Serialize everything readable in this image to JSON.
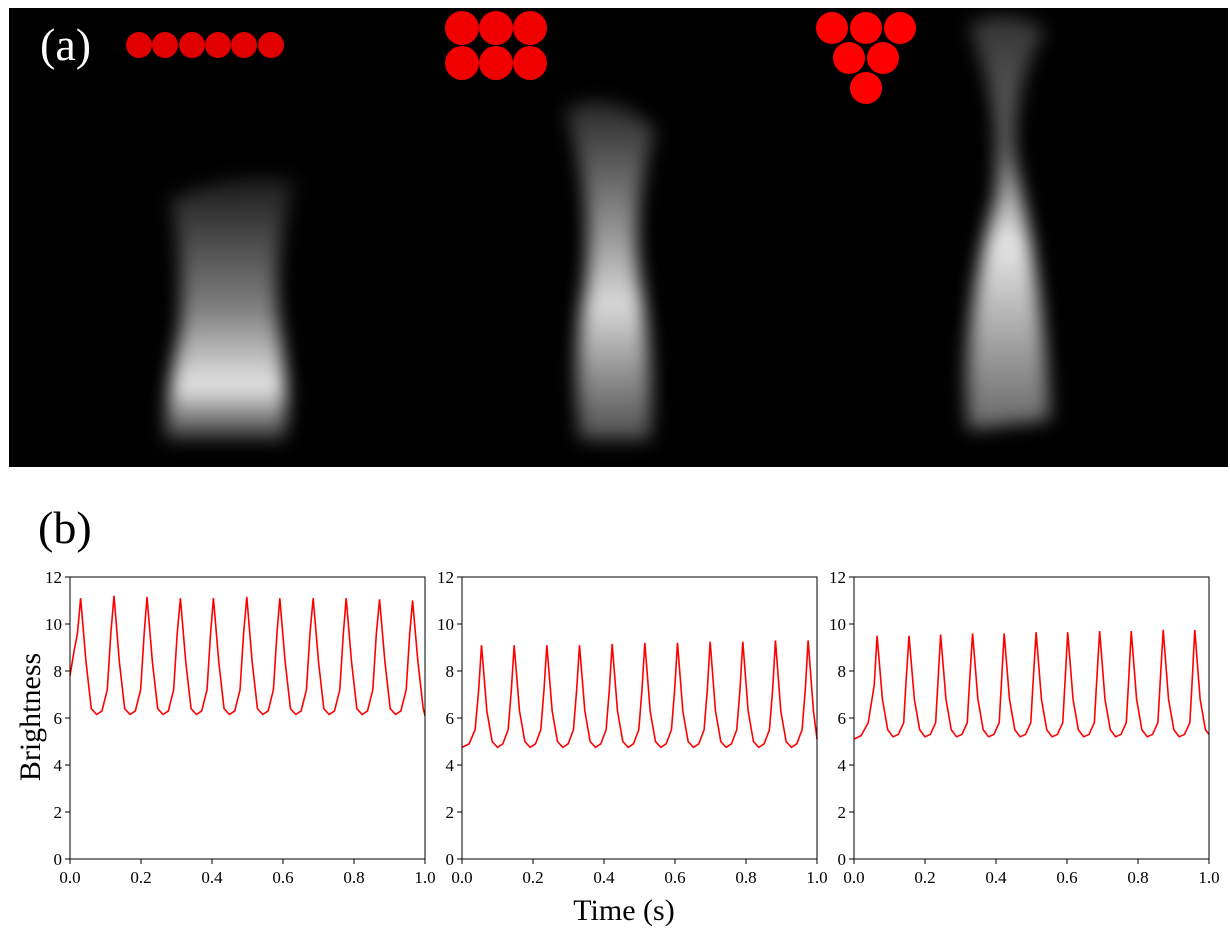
{
  "figure": {
    "panel_a_label": "(a)",
    "panel_b_label": "(b)",
    "ylabel": "Brightness",
    "xlabel": "Time (s)"
  },
  "chart_data": [
    {
      "type": "line",
      "color": "#ff0000",
      "xlim": [
        0,
        1
      ],
      "ylim": [
        0,
        12
      ],
      "xticks": [
        {
          "value": 0,
          "label": "0.0"
        },
        0.2,
        0.4,
        0.6,
        0.8,
        {
          "value": 1,
          "label": "1.0"
        }
      ],
      "yticks": [
        0,
        2,
        4,
        6,
        8,
        10,
        12
      ],
      "x": [
        0,
        0.012,
        0.021,
        0.03,
        0.045,
        0.06,
        0.075,
        0.09,
        0.105,
        0.115,
        0.124,
        0.139,
        0.154,
        0.169,
        0.184,
        0.199,
        0.209,
        0.217,
        0.232,
        0.247,
        0.262,
        0.277,
        0.292,
        0.302,
        0.311,
        0.326,
        0.341,
        0.356,
        0.371,
        0.386,
        0.396,
        0.404,
        0.419,
        0.434,
        0.449,
        0.464,
        0.479,
        0.489,
        0.498,
        0.513,
        0.528,
        0.543,
        0.558,
        0.573,
        0.583,
        0.591,
        0.606,
        0.621,
        0.636,
        0.651,
        0.666,
        0.676,
        0.685,
        0.7,
        0.715,
        0.73,
        0.745,
        0.76,
        0.77,
        0.778,
        0.793,
        0.808,
        0.823,
        0.838,
        0.853,
        0.863,
        0.872,
        0.887,
        0.902,
        0.917,
        0.932,
        0.947,
        0.957,
        0.965,
        0.98,
        0.995,
        1
      ],
      "values": [
        7.8,
        8.9,
        9.6,
        11.1,
        8.4,
        6.4,
        6.15,
        6.3,
        7.2,
        9.6,
        11.2,
        8.4,
        6.4,
        6.15,
        6.3,
        7.2,
        9.6,
        11.15,
        8.4,
        6.4,
        6.15,
        6.3,
        7.2,
        9.6,
        11.1,
        8.4,
        6.4,
        6.15,
        6.3,
        7.2,
        9.6,
        11.1,
        8.4,
        6.4,
        6.15,
        6.3,
        7.2,
        9.6,
        11.15,
        8.4,
        6.4,
        6.15,
        6.3,
        7.2,
        9.6,
        11.1,
        8.4,
        6.4,
        6.15,
        6.3,
        7.2,
        9.6,
        11.1,
        8.4,
        6.4,
        6.15,
        6.3,
        7.2,
        9.6,
        11.1,
        8.4,
        6.4,
        6.15,
        6.3,
        7.2,
        9.6,
        11.05,
        8.4,
        6.4,
        6.15,
        6.3,
        7.2,
        9.6,
        11.0,
        8.4,
        6.4,
        6.1
      ]
    },
    {
      "type": "line",
      "color": "#ff0000",
      "xlim": [
        0,
        1
      ],
      "ylim": [
        0,
        12
      ],
      "xticks": [
        {
          "value": 0,
          "label": "0.0"
        },
        0.2,
        0.4,
        0.6,
        0.8,
        {
          "value": 1,
          "label": "1.0"
        }
      ],
      "yticks": [
        0,
        2,
        4,
        6,
        8,
        10,
        12
      ],
      "x": [
        0,
        0.02,
        0.037,
        0.047,
        0.055,
        0.07,
        0.085,
        0.1,
        0.115,
        0.13,
        0.139,
        0.147,
        0.162,
        0.177,
        0.192,
        0.207,
        0.222,
        0.231,
        0.239,
        0.254,
        0.269,
        0.284,
        0.299,
        0.314,
        0.323,
        0.331,
        0.346,
        0.361,
        0.376,
        0.391,
        0.406,
        0.415,
        0.423,
        0.438,
        0.453,
        0.468,
        0.483,
        0.498,
        0.507,
        0.515,
        0.53,
        0.545,
        0.56,
        0.575,
        0.59,
        0.599,
        0.607,
        0.622,
        0.637,
        0.652,
        0.667,
        0.682,
        0.691,
        0.699,
        0.714,
        0.729,
        0.744,
        0.759,
        0.774,
        0.783,
        0.791,
        0.806,
        0.821,
        0.836,
        0.851,
        0.866,
        0.875,
        0.883,
        0.898,
        0.913,
        0.928,
        0.943,
        0.958,
        0.967,
        0.975,
        0.99,
        1
      ],
      "values": [
        4.75,
        4.9,
        5.5,
        7.2,
        9.1,
        6.3,
        5.0,
        4.75,
        4.9,
        5.5,
        7.2,
        9.1,
        6.3,
        5.0,
        4.75,
        4.9,
        5.5,
        7.2,
        9.1,
        6.3,
        5.0,
        4.75,
        4.9,
        5.5,
        7.2,
        9.1,
        6.3,
        5.0,
        4.75,
        4.9,
        5.5,
        7.2,
        9.15,
        6.3,
        5.0,
        4.75,
        4.9,
        5.5,
        7.2,
        9.2,
        6.3,
        5.0,
        4.75,
        4.9,
        5.5,
        7.2,
        9.2,
        6.3,
        5.0,
        4.75,
        4.9,
        5.5,
        7.2,
        9.25,
        6.3,
        5.0,
        4.75,
        4.9,
        5.5,
        7.2,
        9.25,
        6.3,
        5.0,
        4.75,
        4.9,
        5.5,
        7.2,
        9.3,
        6.3,
        5.0,
        4.75,
        4.9,
        5.5,
        7.2,
        9.3,
        6.3,
        5.1
      ]
    },
    {
      "type": "line",
      "color": "#ff0000",
      "xlim": [
        0,
        1
      ],
      "ylim": [
        0,
        12
      ],
      "xticks": [
        {
          "value": 0,
          "label": "0.0"
        },
        0.2,
        0.4,
        0.6,
        0.8,
        {
          "value": 1,
          "label": "1.0"
        }
      ],
      "yticks": [
        0,
        2,
        4,
        6,
        8,
        10,
        12
      ],
      "x": [
        0,
        0.02,
        0.04,
        0.057,
        0.065,
        0.08,
        0.095,
        0.11,
        0.125,
        0.14,
        0.146,
        0.155,
        0.17,
        0.185,
        0.2,
        0.215,
        0.23,
        0.236,
        0.244,
        0.259,
        0.274,
        0.289,
        0.304,
        0.319,
        0.325,
        0.334,
        0.349,
        0.364,
        0.379,
        0.394,
        0.409,
        0.415,
        0.423,
        0.438,
        0.453,
        0.468,
        0.483,
        0.498,
        0.504,
        0.513,
        0.528,
        0.543,
        0.558,
        0.573,
        0.588,
        0.594,
        0.602,
        0.617,
        0.632,
        0.647,
        0.662,
        0.677,
        0.683,
        0.692,
        0.707,
        0.722,
        0.737,
        0.752,
        0.767,
        0.773,
        0.781,
        0.796,
        0.811,
        0.826,
        0.841,
        0.856,
        0.862,
        0.871,
        0.886,
        0.901,
        0.916,
        0.931,
        0.946,
        0.952,
        0.96,
        0.975,
        0.99,
        1
      ],
      "values": [
        5.1,
        5.25,
        5.8,
        7.4,
        9.5,
        6.8,
        5.5,
        5.2,
        5.3,
        5.8,
        7.4,
        9.5,
        6.8,
        5.5,
        5.2,
        5.3,
        5.8,
        7.4,
        9.55,
        6.8,
        5.5,
        5.2,
        5.3,
        5.8,
        7.4,
        9.6,
        6.8,
        5.5,
        5.2,
        5.3,
        5.8,
        7.4,
        9.6,
        6.8,
        5.5,
        5.2,
        5.3,
        5.8,
        7.4,
        9.65,
        6.8,
        5.5,
        5.2,
        5.3,
        5.8,
        7.4,
        9.65,
        6.8,
        5.5,
        5.2,
        5.3,
        5.8,
        7.4,
        9.7,
        6.8,
        5.5,
        5.2,
        5.3,
        5.8,
        7.4,
        9.7,
        6.8,
        5.5,
        5.2,
        5.3,
        5.8,
        7.4,
        9.75,
        6.8,
        5.5,
        5.2,
        5.3,
        5.8,
        7.4,
        9.75,
        6.8,
        5.5,
        5.3
      ]
    }
  ]
}
